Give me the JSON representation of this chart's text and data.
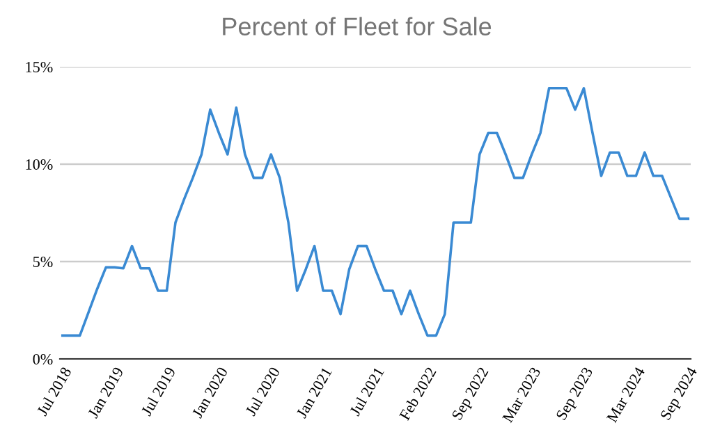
{
  "chart_data": {
    "type": "line",
    "title": "Percent of Fleet for Sale",
    "categories": [
      "Jul 2018",
      null,
      null,
      null,
      null,
      null,
      "Jan 2019",
      null,
      null,
      null,
      null,
      null,
      "Jul 2019",
      null,
      null,
      null,
      null,
      null,
      "Jan 2020",
      null,
      null,
      null,
      null,
      null,
      "Jul 2020",
      null,
      null,
      null,
      null,
      null,
      "Jan 2021",
      null,
      null,
      null,
      null,
      null,
      "Jul 2021",
      null,
      null,
      null,
      null,
      null,
      "Feb 2022",
      null,
      null,
      null,
      null,
      null,
      "Sep 2022",
      null,
      null,
      null,
      null,
      null,
      "Mar 2023",
      null,
      null,
      null,
      null,
      null,
      "Sep 2023",
      null,
      null,
      null,
      null,
      null,
      "Mar 2024",
      null,
      null,
      null,
      null,
      null,
      "Sep 2024"
    ],
    "series": [
      {
        "color": "#3a8ad3",
        "values": [
          1.2,
          1.2,
          1.2,
          2.4,
          3.6,
          4.7,
          4.7,
          4.65,
          5.8,
          4.65,
          4.65,
          3.5,
          3.5,
          7.0,
          8.2,
          9.3,
          10.5,
          12.8,
          11.6,
          10.5,
          12.9,
          10.5,
          9.3,
          9.3,
          10.5,
          9.3,
          7.0,
          3.5,
          4.6,
          5.8,
          3.5,
          3.5,
          2.3,
          4.6,
          5.8,
          5.8,
          4.6,
          3.5,
          3.5,
          2.3,
          3.5,
          2.3,
          1.2,
          1.2,
          2.3,
          7.0,
          7.0,
          7.0,
          10.5,
          11.6,
          11.6,
          10.5,
          9.3,
          9.3,
          10.5,
          11.6,
          13.9,
          13.9,
          13.9,
          12.8,
          13.9,
          11.6,
          9.4,
          10.6,
          10.6,
          9.4,
          9.4,
          10.6,
          9.4,
          9.4,
          8.3,
          7.2,
          7.2
        ]
      }
    ],
    "ylim": [
      0,
      15
    ],
    "yticks": [
      {
        "value": 0,
        "label": "0%"
      },
      {
        "value": 5,
        "label": "5%"
      },
      {
        "value": 10,
        "label": "10%"
      },
      {
        "value": 15,
        "label": "15%"
      }
    ],
    "grid": "y",
    "legend": false,
    "marker": "none",
    "line_style": "solid"
  }
}
